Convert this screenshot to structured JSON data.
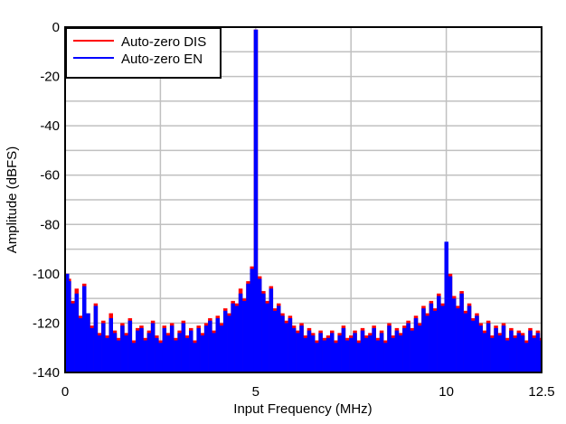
{
  "chart_data": {
    "type": "bar",
    "xlabel": "Input Frequency (MHz)",
    "ylabel": "Amplitude (dBFS)",
    "xlim": [
      0,
      12.5
    ],
    "ylim": [
      -140,
      0
    ],
    "xticks": [
      "0",
      "5",
      "10",
      "12.5"
    ],
    "xtick_values": [
      0,
      5,
      10,
      12.5
    ],
    "yticks": [
      "0",
      "-20",
      "-40",
      "-60",
      "-80",
      "-100",
      "-120",
      "-140"
    ],
    "ytick_values": [
      0,
      -20,
      -40,
      -60,
      -80,
      -100,
      -120,
      -140
    ],
    "grid": true,
    "legend_position": "top-left",
    "x_start": 0,
    "x_step": 0.1,
    "series": [
      {
        "name": "Auto-zero DIS",
        "color": "#ff0000",
        "values": [
          -100,
          -102,
          -111,
          -106,
          -117,
          -104,
          -116,
          -121,
          -112,
          -124,
          -119,
          -125,
          -116,
          -123,
          -126,
          -120,
          -124,
          -118,
          -127,
          -122,
          -121,
          -126,
          -123,
          -119,
          -125,
          -127,
          -121,
          -124,
          -120,
          -126,
          -123,
          -119,
          -125,
          -122,
          -127,
          -121,
          -124,
          -120,
          -118,
          -123,
          -117,
          -120,
          -114,
          -116,
          -111,
          -112,
          -106,
          -110,
          -103,
          -97,
          -1,
          -101,
          -107,
          -111,
          -105,
          -114,
          -112,
          -116,
          -119,
          -117,
          -121,
          -123,
          -120,
          -125,
          -122,
          -124,
          -127,
          -123,
          -126,
          -125,
          -123,
          -127,
          -124,
          -121,
          -126,
          -125,
          -123,
          -127,
          -122,
          -125,
          -124,
          -121,
          -126,
          -123,
          -127,
          -120,
          -125,
          -122,
          -124,
          -121,
          -119,
          -122,
          -117,
          -120,
          -113,
          -116,
          -111,
          -114,
          -108,
          -112,
          -88,
          -100,
          -109,
          -113,
          -107,
          -115,
          -112,
          -118,
          -116,
          -120,
          -123,
          -119,
          -125,
          -121,
          -124,
          -120,
          -126,
          -122,
          -125,
          -123,
          -124,
          -127,
          -122,
          -125,
          -123,
          -126
        ]
      },
      {
        "name": "Auto-zero EN",
        "color": "#0000ff",
        "values": [
          -100,
          -103,
          -112,
          -108,
          -118,
          -105,
          -116,
          -122,
          -113,
          -125,
          -120,
          -126,
          -118,
          -124,
          -127,
          -121,
          -125,
          -119,
          -128,
          -123,
          -122,
          -127,
          -124,
          -120,
          -126,
          -128,
          -122,
          -125,
          -121,
          -127,
          -124,
          -120,
          -126,
          -123,
          -128,
          -122,
          -125,
          -121,
          -119,
          -124,
          -118,
          -121,
          -115,
          -117,
          -112,
          -113,
          -108,
          -111,
          -104,
          -98,
          -1,
          -102,
          -108,
          -112,
          -106,
          -115,
          -113,
          -117,
          -120,
          -118,
          -122,
          -124,
          -121,
          -126,
          -123,
          -125,
          -128,
          -124,
          -127,
          -126,
          -124,
          -128,
          -125,
          -122,
          -127,
          -126,
          -124,
          -128,
          -123,
          -126,
          -125,
          -122,
          -127,
          -124,
          -128,
          -121,
          -126,
          -123,
          -125,
          -122,
          -120,
          -123,
          -118,
          -121,
          -114,
          -117,
          -112,
          -115,
          -109,
          -113,
          -87,
          -101,
          -110,
          -114,
          -108,
          -116,
          -113,
          -119,
          -117,
          -121,
          -124,
          -120,
          -126,
          -122,
          -125,
          -121,
          -127,
          -123,
          -126,
          -124,
          -125,
          -128,
          -123,
          -126,
          -124,
          -127
        ]
      }
    ]
  }
}
